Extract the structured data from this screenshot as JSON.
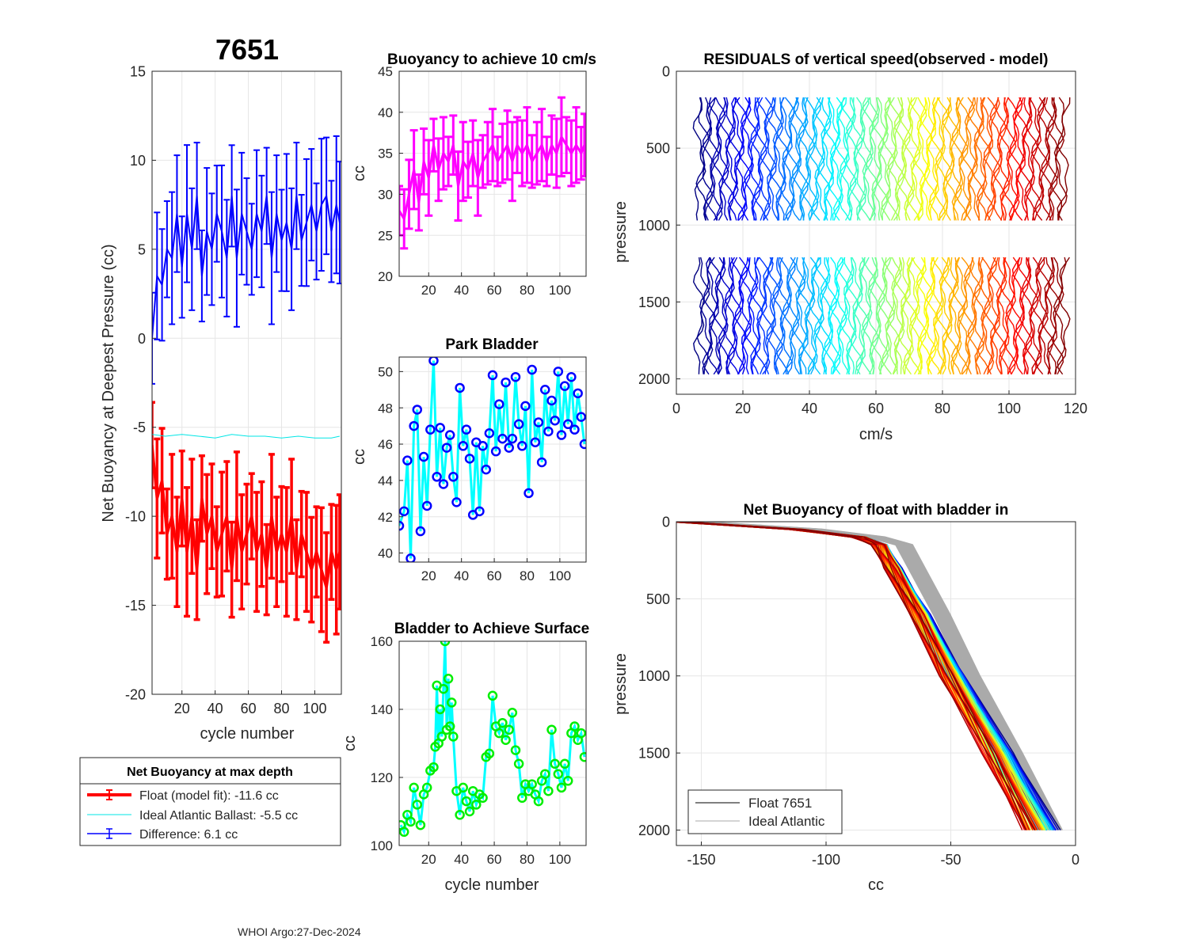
{
  "figure": {
    "float_id": "7651",
    "footer": "WHOI Argo:27-Dec-2024"
  },
  "legend_box": {
    "title": "Net Buoyancy at max depth",
    "entries": [
      {
        "label": "Float (model fit): -11.6 cc",
        "color": "#ff0000"
      },
      {
        "label": "Ideal Atlantic Ballast:  -5.5 cc",
        "color": "#00e6e6"
      },
      {
        "label": "Difference:   6.1 cc",
        "color": "#0000ff"
      }
    ]
  },
  "colors": {
    "float": "#ff0000",
    "ideal": "#00e6e6",
    "difference": "#0000ff",
    "buoyancy": "#ff00ff",
    "park_marker": "#0000ff",
    "park_line": "#00ffff",
    "surf_marker": "#00ee00",
    "surf_line": "#00ffff",
    "gray": "#aaaaaa"
  },
  "chart_data": [
    {
      "id": "net-buoyancy",
      "type": "line",
      "title": "7651",
      "xlabel": "cycle number",
      "ylabel": "Net Buoyancy at Deepest Pressure (cc)",
      "xlim": [
        2,
        116
      ],
      "ylim": [
        -20,
        15
      ],
      "xticks": [
        20,
        40,
        60,
        80,
        100
      ],
      "yticks": [
        -20,
        -15,
        -10,
        -5,
        0,
        5,
        10,
        15
      ],
      "series": [
        {
          "name": "Float (model fit)",
          "color": "#ff0000",
          "error_bars": true,
          "x": [
            2,
            5,
            8,
            11,
            14,
            17,
            20,
            23,
            26,
            29,
            32,
            35,
            38,
            41,
            44,
            47,
            50,
            53,
            56,
            59,
            62,
            65,
            68,
            71,
            74,
            77,
            80,
            83,
            86,
            89,
            92,
            95,
            98,
            101,
            104,
            107,
            110,
            113,
            115
          ],
          "values": [
            -6,
            -9,
            -8,
            -11,
            -10,
            -12,
            -9,
            -12,
            -10,
            -13,
            -9,
            -11,
            -10,
            -12,
            -11,
            -10,
            -13,
            -10,
            -12,
            -11,
            -10,
            -12,
            -11,
            -13,
            -10,
            -12,
            -11,
            -12,
            -10,
            -13,
            -11,
            -12,
            -13,
            -12,
            -13,
            -14,
            -12,
            -13,
            -12
          ]
        },
        {
          "name": "Ideal Atlantic Ballast",
          "color": "#00e6e6",
          "error_bars": false,
          "x": [
            2,
            10,
            20,
            30,
            40,
            50,
            60,
            70,
            80,
            90,
            100,
            110,
            115
          ],
          "values": [
            -5.4,
            -5.5,
            -5.4,
            -5.5,
            -5.6,
            -5.4,
            -5.5,
            -5.5,
            -5.6,
            -5.5,
            -5.6,
            -5.6,
            -5.5
          ]
        },
        {
          "name": "Difference",
          "color": "#0000ff",
          "error_bars": true,
          "x": [
            2,
            5,
            8,
            11,
            14,
            17,
            20,
            23,
            26,
            29,
            32,
            35,
            38,
            41,
            44,
            47,
            50,
            53,
            56,
            59,
            62,
            65,
            68,
            71,
            74,
            77,
            80,
            83,
            86,
            89,
            92,
            95,
            98,
            101,
            104,
            107,
            110,
            113,
            115
          ],
          "values": [
            0,
            3.5,
            3,
            5,
            4.5,
            7,
            4,
            7,
            5,
            8,
            3.5,
            6,
            5,
            7,
            6,
            4.5,
            8,
            4.5,
            7,
            6,
            5,
            7,
            6,
            8,
            4.5,
            7,
            5.5,
            6.5,
            5,
            8,
            5.5,
            6.5,
            7.5,
            6,
            7.5,
            8,
            6,
            7.5,
            6.5
          ]
        }
      ]
    },
    {
      "id": "buoyancy-10cms",
      "type": "line",
      "title": "Buoyancy to achieve 10 cm/s",
      "xlabel": "",
      "ylabel": "cc",
      "xlim": [
        2,
        116
      ],
      "ylim": [
        20,
        45
      ],
      "xticks": [
        20,
        40,
        60,
        80,
        100
      ],
      "yticks": [
        20,
        25,
        30,
        35,
        40,
        45
      ],
      "series": [
        {
          "name": "Buoyancy",
          "color": "#ff00ff",
          "error_bars": true,
          "x": [
            2,
            5,
            8,
            11,
            14,
            17,
            20,
            23,
            26,
            29,
            32,
            35,
            38,
            41,
            44,
            47,
            50,
            53,
            56,
            59,
            62,
            65,
            68,
            71,
            74,
            77,
            80,
            83,
            86,
            89,
            92,
            95,
            98,
            101,
            104,
            107,
            110,
            113,
            115
          ],
          "values": [
            28,
            27,
            30,
            33,
            29,
            34,
            32,
            36,
            33,
            35,
            34,
            36,
            31,
            34,
            33,
            35,
            32,
            34,
            35,
            36,
            34,
            35,
            36,
            34,
            36,
            35,
            36,
            34,
            35,
            36,
            34,
            36,
            35,
            37,
            36,
            35,
            36,
            35,
            36
          ]
        }
      ]
    },
    {
      "id": "park-bladder",
      "type": "line",
      "title": "Park Bladder",
      "xlabel": "",
      "ylabel": "cc",
      "xlim": [
        2,
        116
      ],
      "ylim": [
        39.5,
        50.8
      ],
      "xticks": [
        20,
        40,
        60,
        80,
        100
      ],
      "yticks": [
        40,
        42,
        44,
        46,
        48,
        50
      ],
      "series": [
        {
          "name": "Park bladder",
          "color": "#00ffff",
          "marker_color": "#0000ff",
          "x": [
            2,
            5,
            7,
            9,
            11,
            13,
            15,
            17,
            19,
            21,
            23,
            25,
            27,
            29,
            31,
            33,
            35,
            37,
            39,
            41,
            43,
            45,
            47,
            49,
            51,
            53,
            55,
            57,
            59,
            61,
            63,
            65,
            67,
            69,
            71,
            73,
            75,
            77,
            79,
            81,
            83,
            85,
            87,
            89,
            91,
            93,
            95,
            97,
            99,
            101,
            103,
            105,
            107,
            109,
            111,
            113,
            115
          ],
          "values": [
            41.5,
            42.3,
            45.1,
            39.7,
            47,
            47.9,
            41.2,
            45.3,
            42.6,
            46.8,
            50.6,
            44.2,
            46.9,
            43.8,
            45.8,
            46.5,
            44.2,
            42.8,
            49.1,
            45.9,
            46.8,
            45.2,
            42.1,
            46.1,
            42.3,
            45.9,
            44.6,
            46.6,
            49.8,
            45.6,
            48.2,
            46.3,
            49.4,
            45.8,
            46.3,
            49.7,
            47.1,
            45.9,
            48.1,
            43.3,
            50.1,
            46.1,
            47.2,
            45.0,
            49.0,
            46.7,
            48.4,
            47.3,
            50.0,
            46.5,
            49.2,
            47.1,
            49.7,
            46.8,
            48.8,
            47.5,
            46.0
          ]
        }
      ]
    },
    {
      "id": "bladder-surface",
      "type": "line",
      "title": "Bladder to Achieve Surface",
      "xlabel": "cycle number",
      "ylabel": "cc",
      "xlim": [
        2,
        116
      ],
      "ylim": [
        100,
        160
      ],
      "xticks": [
        20,
        40,
        60,
        80,
        100
      ],
      "yticks": [
        100,
        120,
        140,
        160
      ],
      "series": [
        {
          "name": "Surface bladder",
          "color": "#00ffff",
          "marker_color": "#00ee00",
          "x": [
            3,
            5,
            7,
            9,
            11,
            13,
            15,
            17,
            19,
            21,
            23,
            24,
            25,
            26,
            27,
            28,
            29,
            30,
            31,
            32,
            33,
            34,
            35,
            37,
            39,
            41,
            43,
            45,
            47,
            49,
            51,
            53,
            55,
            57,
            59,
            61,
            63,
            65,
            67,
            69,
            71,
            73,
            75,
            77,
            79,
            81,
            83,
            85,
            87,
            89,
            91,
            93,
            95,
            97,
            99,
            101,
            103,
            105,
            107,
            109,
            111,
            113,
            115
          ],
          "values": [
            106,
            104,
            109,
            107,
            117,
            112,
            106,
            115,
            117,
            122,
            123,
            129,
            147,
            130,
            140,
            132,
            146,
            160,
            134,
            149,
            135,
            142,
            132,
            116,
            109,
            117,
            113,
            110,
            116,
            112,
            115,
            114,
            126,
            127,
            144,
            135,
            133,
            136,
            131,
            134,
            139,
            128,
            124,
            114,
            118,
            116,
            118,
            115,
            113,
            119,
            121,
            116,
            134,
            124,
            121,
            117,
            124,
            119,
            133,
            135,
            131,
            133,
            126
          ]
        }
      ]
    },
    {
      "id": "residuals",
      "type": "line",
      "title": "RESIDUALS of vertical speed(observed - model)",
      "xlabel": "cm/s",
      "ylabel": "pressure",
      "xlim": [
        0,
        120
      ],
      "ylim": [
        0,
        2100
      ],
      "xticks": [
        0,
        20,
        40,
        60,
        80,
        100,
        120
      ],
      "yticks": [
        0,
        500,
        1000,
        1500,
        2000
      ],
      "profile_count": 115,
      "offset_start_cm_s": 7,
      "offset_step_cm_s": 0.96,
      "upper_range_dbar": [
        170,
        1000
      ],
      "lower_range_dbar": [
        1210,
        2000
      ]
    },
    {
      "id": "net-buoyancy-bladder-in",
      "type": "line",
      "title": "Net Buoyancy of float with bladder in",
      "xlabel": "cc",
      "ylabel": "pressure",
      "xlim": [
        -160,
        0
      ],
      "ylim": [
        0,
        2100
      ],
      "xticks": [
        -150,
        -100,
        -50,
        0
      ],
      "yticks": [
        0,
        500,
        1000,
        1500,
        2000
      ],
      "legend": [
        "Float 7651",
        "Ideal Atlantic"
      ],
      "reference_profile": {
        "pressure": [
          0,
          50,
          100,
          150,
          300,
          600,
          1000,
          1500,
          2000
        ],
        "cc": [
          -158,
          -110,
          -85,
          -77,
          -72,
          -62,
          -50,
          -33,
          -17
        ]
      }
    }
  ]
}
